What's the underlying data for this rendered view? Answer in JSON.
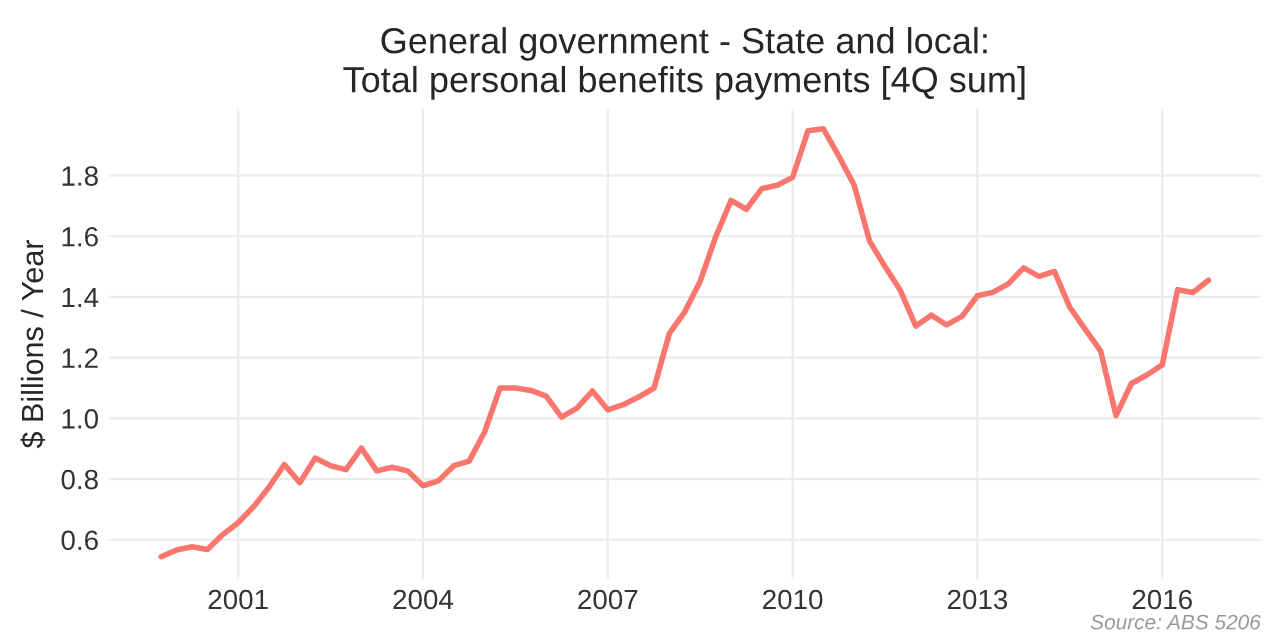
{
  "chart_data": {
    "type": "line",
    "title": "General government - State and local:\nTotal personal benefits payments [4Q sum]",
    "ylabel": "$ Billions / Year",
    "annotations": [
      "Source: ABS 5206"
    ],
    "x": [
      1999.75,
      2000.0,
      2000.25,
      2000.5,
      2000.75,
      2001.0,
      2001.25,
      2001.5,
      2001.75,
      2002.0,
      2002.25,
      2002.5,
      2002.75,
      2003.0,
      2003.25,
      2003.5,
      2003.75,
      2004.0,
      2004.25,
      2004.5,
      2004.75,
      2005.0,
      2005.25,
      2005.5,
      2005.75,
      2006.0,
      2006.25,
      2006.5,
      2006.75,
      2007.0,
      2007.25,
      2007.5,
      2007.75,
      2008.0,
      2008.25,
      2008.5,
      2008.75,
      2009.0,
      2009.25,
      2009.5,
      2009.75,
      2010.0,
      2010.25,
      2010.5,
      2010.75,
      2011.0,
      2011.25,
      2011.5,
      2011.75,
      2012.0,
      2012.25,
      2012.5,
      2012.75,
      2013.0,
      2013.25,
      2013.5,
      2013.75,
      2014.0,
      2014.25,
      2014.5,
      2014.75,
      2015.0,
      2015.25,
      2015.5,
      2015.75,
      2016.0,
      2016.25,
      2016.5,
      2016.75
    ],
    "series": [
      {
        "color": "#f8766d",
        "values": [
          0.544,
          0.566,
          0.577,
          0.568,
          0.617,
          0.656,
          0.709,
          0.773,
          0.848,
          0.788,
          0.869,
          0.844,
          0.831,
          0.902,
          0.827,
          0.839,
          0.827,
          0.778,
          0.794,
          0.844,
          0.859,
          0.955,
          1.1,
          1.1,
          1.092,
          1.073,
          1.004,
          1.034,
          1.09,
          1.028,
          1.045,
          1.07,
          1.1,
          1.28,
          1.351,
          1.452,
          1.597,
          1.718,
          1.689,
          1.757,
          1.768,
          1.794,
          1.948,
          1.954,
          1.864,
          1.768,
          1.584,
          1.5,
          1.421,
          1.304,
          1.34,
          1.308,
          1.336,
          1.404,
          1.415,
          1.443,
          1.496,
          1.468,
          1.484,
          1.366,
          1.293,
          1.222,
          1.009,
          1.115,
          1.143,
          1.176,
          1.424,
          1.415,
          1.455
        ]
      }
    ],
    "xlim": [
      1998.9,
      2017.6
    ],
    "ylim": [
      0.47,
      2.02
    ],
    "xticks": [
      2001,
      2004,
      2007,
      2010,
      2013,
      2016
    ],
    "yticks": [
      {
        "value": 0.6,
        "label": "0.6"
      },
      {
        "value": 0.8,
        "label": "0.8"
      },
      {
        "value": 1.0,
        "label": "1.0"
      },
      {
        "value": 1.2,
        "label": "1.2"
      },
      {
        "value": 1.4,
        "label": "1.4"
      },
      {
        "value": 1.6,
        "label": "1.6"
      },
      {
        "value": 1.8,
        "label": "1.8"
      }
    ],
    "grid": true,
    "marker": "none",
    "line_style": "solid"
  }
}
